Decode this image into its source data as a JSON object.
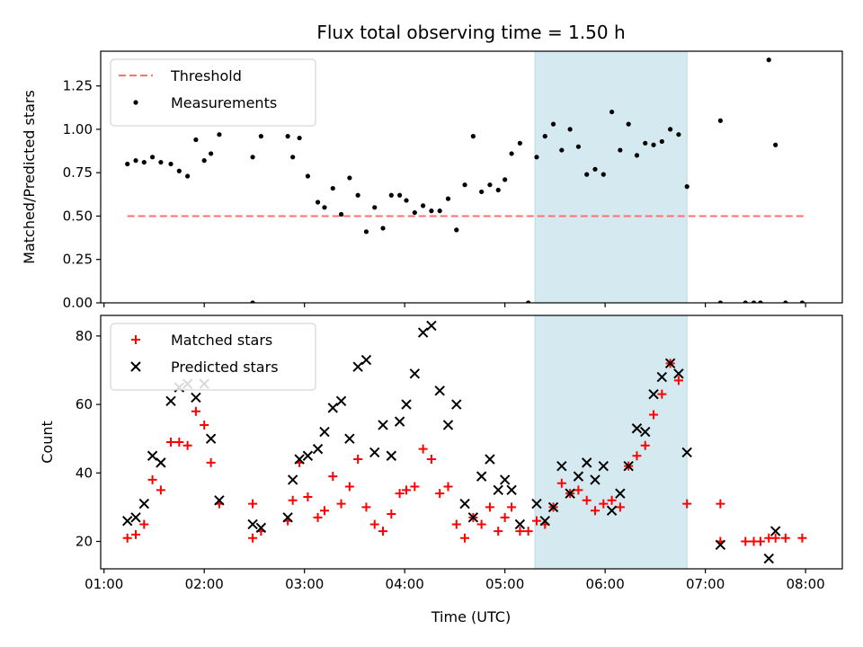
{
  "chart_data": [
    {
      "type": "scatter",
      "title": "Flux total observing time = 1.50 h",
      "xlabel": "",
      "ylabel": "Matched/Predicted stars",
      "ylim": [
        0,
        1.45
      ],
      "xlim": [
        "00:58",
        "08:22"
      ],
      "yticks": [
        "0.00",
        "0.25",
        "0.50",
        "0.75",
        "1.00",
        "1.25"
      ],
      "xticks": [
        "01:00",
        "02:00",
        "03:00",
        "04:00",
        "05:00",
        "06:00",
        "07:00",
        "08:00"
      ],
      "shaded_region": {
        "from": "05:18",
        "to": "06:49",
        "color": "#d4eaf0"
      },
      "legend_position": "upper left",
      "threshold": {
        "name": "Threshold",
        "value": 0.5,
        "from": "01:14",
        "to": "08:00",
        "color": "#ff7070",
        "style": "dashed"
      },
      "series": [
        {
          "name": "Measurements",
          "color": "#000000",
          "marker": "dot",
          "points": [
            [
              "01:14",
              0.8
            ],
            [
              "01:19",
              0.82
            ],
            [
              "01:24",
              0.81
            ],
            [
              "01:29",
              0.84
            ],
            [
              "01:34",
              0.81
            ],
            [
              "01:40",
              0.8
            ],
            [
              "01:45",
              0.76
            ],
            [
              "01:50",
              0.73
            ],
            [
              "01:55",
              0.94
            ],
            [
              "02:00",
              0.82
            ],
            [
              "02:04",
              0.86
            ],
            [
              "02:09",
              0.97
            ],
            [
              "02:29",
              0.0
            ],
            [
              "02:29",
              0.84
            ],
            [
              "02:34",
              0.96
            ],
            [
              "02:50",
              0.96
            ],
            [
              "02:53",
              0.84
            ],
            [
              "02:57",
              0.95
            ],
            [
              "03:02",
              0.73
            ],
            [
              "03:08",
              0.58
            ],
            [
              "03:12",
              0.55
            ],
            [
              "03:17",
              0.66
            ],
            [
              "03:22",
              0.51
            ],
            [
              "03:27",
              0.72
            ],
            [
              "03:32",
              0.62
            ],
            [
              "03:37",
              0.41
            ],
            [
              "03:42",
              0.55
            ],
            [
              "03:47",
              0.43
            ],
            [
              "03:52",
              0.62
            ],
            [
              "03:57",
              0.62
            ],
            [
              "04:01",
              0.59
            ],
            [
              "04:06",
              0.52
            ],
            [
              "04:11",
              0.56
            ],
            [
              "04:16",
              0.53
            ],
            [
              "04:21",
              0.53
            ],
            [
              "04:26",
              0.6
            ],
            [
              "04:31",
              0.42
            ],
            [
              "04:36",
              0.68
            ],
            [
              "04:41",
              0.96
            ],
            [
              "04:46",
              0.64
            ],
            [
              "04:51",
              0.68
            ],
            [
              "04:56",
              0.65
            ],
            [
              "05:00",
              0.71
            ],
            [
              "05:04",
              0.86
            ],
            [
              "05:09",
              0.92
            ],
            [
              "05:14",
              0.0
            ],
            [
              "05:19",
              0.84
            ],
            [
              "05:24",
              0.96
            ],
            [
              "05:29",
              1.03
            ],
            [
              "05:34",
              0.88
            ],
            [
              "05:39",
              1.0
            ],
            [
              "05:44",
              0.9
            ],
            [
              "05:49",
              0.74
            ],
            [
              "05:54",
              0.77
            ],
            [
              "05:59",
              0.74
            ],
            [
              "06:04",
              1.1
            ],
            [
              "06:09",
              0.88
            ],
            [
              "06:14",
              1.03
            ],
            [
              "06:19",
              0.85
            ],
            [
              "06:24",
              0.92
            ],
            [
              "06:29",
              0.91
            ],
            [
              "06:34",
              0.93
            ],
            [
              "06:39",
              1.0
            ],
            [
              "06:44",
              0.97
            ],
            [
              "06:49",
              0.67
            ],
            [
              "07:09",
              0.0
            ],
            [
              "07:09",
              1.05
            ],
            [
              "07:24",
              0.0
            ],
            [
              "07:29",
              0.0
            ],
            [
              "07:33",
              0.0
            ],
            [
              "07:38",
              1.4
            ],
            [
              "07:42",
              0.91
            ],
            [
              "07:48",
              0.0
            ],
            [
              "07:58",
              0.0
            ]
          ]
        }
      ]
    },
    {
      "type": "scatter",
      "title": "",
      "xlabel": "Time (UTC)",
      "ylabel": "Count",
      "ylim": [
        12,
        86
      ],
      "xlim": [
        "00:58",
        "08:22"
      ],
      "yticks": [
        "20",
        "40",
        "60",
        "80"
      ],
      "xticks": [
        "01:00",
        "02:00",
        "03:00",
        "04:00",
        "05:00",
        "06:00",
        "07:00",
        "08:00"
      ],
      "shaded_region": {
        "from": "05:18",
        "to": "06:49",
        "color": "#d4eaf0"
      },
      "legend_position": "upper left",
      "series": [
        {
          "name": "Matched stars",
          "color": "#ff0000",
          "marker": "plus",
          "points": [
            [
              "01:14",
              21
            ],
            [
              "01:19",
              22
            ],
            [
              "01:24",
              25
            ],
            [
              "01:29",
              38
            ],
            [
              "01:34",
              35
            ],
            [
              "01:40",
              49
            ],
            [
              "01:45",
              49
            ],
            [
              "01:50",
              48
            ],
            [
              "01:55",
              58
            ],
            [
              "02:00",
              54
            ],
            [
              "02:04",
              43
            ],
            [
              "02:09",
              31
            ],
            [
              "02:29",
              31
            ],
            [
              "02:29",
              21
            ],
            [
              "02:34",
              23
            ],
            [
              "02:50",
              26
            ],
            [
              "02:53",
              32
            ],
            [
              "02:57",
              43
            ],
            [
              "03:02",
              33
            ],
            [
              "03:08",
              27
            ],
            [
              "03:12",
              29
            ],
            [
              "03:17",
              39
            ],
            [
              "03:22",
              31
            ],
            [
              "03:27",
              36
            ],
            [
              "03:32",
              44
            ],
            [
              "03:37",
              30
            ],
            [
              "03:42",
              25
            ],
            [
              "03:47",
              23
            ],
            [
              "03:52",
              28
            ],
            [
              "03:57",
              34
            ],
            [
              "04:01",
              35
            ],
            [
              "04:06",
              36
            ],
            [
              "04:11",
              47
            ],
            [
              "04:16",
              44
            ],
            [
              "04:21",
              34
            ],
            [
              "04:26",
              36
            ],
            [
              "04:31",
              25
            ],
            [
              "04:36",
              21
            ],
            [
              "04:41",
              27
            ],
            [
              "04:46",
              25
            ],
            [
              "04:51",
              30
            ],
            [
              "04:56",
              23
            ],
            [
              "05:00",
              27
            ],
            [
              "05:04",
              30
            ],
            [
              "05:09",
              23
            ],
            [
              "05:14",
              23
            ],
            [
              "05:19",
              26
            ],
            [
              "05:24",
              25
            ],
            [
              "05:29",
              30
            ],
            [
              "05:34",
              37
            ],
            [
              "05:39",
              34
            ],
            [
              "05:44",
              35
            ],
            [
              "05:49",
              32
            ],
            [
              "05:54",
              29
            ],
            [
              "05:59",
              31
            ],
            [
              "06:04",
              32
            ],
            [
              "06:09",
              30
            ],
            [
              "06:14",
              42
            ],
            [
              "06:19",
              45
            ],
            [
              "06:24",
              48
            ],
            [
              "06:29",
              57
            ],
            [
              "06:34",
              63
            ],
            [
              "06:39",
              72
            ],
            [
              "06:44",
              67
            ],
            [
              "06:49",
              31
            ],
            [
              "07:09",
              31
            ],
            [
              "07:09",
              20
            ],
            [
              "07:24",
              20
            ],
            [
              "07:29",
              20
            ],
            [
              "07:33",
              20
            ],
            [
              "07:38",
              21
            ],
            [
              "07:42",
              21
            ],
            [
              "07:48",
              21
            ],
            [
              "07:58",
              21
            ]
          ]
        },
        {
          "name": "Predicted stars",
          "color": "#000000",
          "marker": "x",
          "points": [
            [
              "01:14",
              26
            ],
            [
              "01:19",
              27
            ],
            [
              "01:24",
              31
            ],
            [
              "01:29",
              45
            ],
            [
              "01:34",
              43
            ],
            [
              "01:40",
              61
            ],
            [
              "01:45",
              65
            ],
            [
              "01:50",
              66
            ],
            [
              "01:55",
              62
            ],
            [
              "02:00",
              66
            ],
            [
              "02:04",
              50
            ],
            [
              "02:09",
              32
            ],
            [
              "02:29",
              25
            ],
            [
              "02:34",
              24
            ],
            [
              "02:50",
              27
            ],
            [
              "02:53",
              38
            ],
            [
              "02:57",
              44
            ],
            [
              "03:02",
              45
            ],
            [
              "03:08",
              47
            ],
            [
              "03:12",
              52
            ],
            [
              "03:17",
              59
            ],
            [
              "03:22",
              61
            ],
            [
              "03:27",
              50
            ],
            [
              "03:32",
              71
            ],
            [
              "03:37",
              73
            ],
            [
              "03:42",
              46
            ],
            [
              "03:47",
              54
            ],
            [
              "03:52",
              45
            ],
            [
              "03:57",
              55
            ],
            [
              "04:01",
              60
            ],
            [
              "04:06",
              69
            ],
            [
              "04:11",
              81
            ],
            [
              "04:16",
              83
            ],
            [
              "04:21",
              64
            ],
            [
              "04:26",
              54
            ],
            [
              "04:31",
              60
            ],
            [
              "04:36",
              31
            ],
            [
              "04:41",
              27
            ],
            [
              "04:46",
              39
            ],
            [
              "04:51",
              44
            ],
            [
              "04:56",
              35
            ],
            [
              "05:00",
              38
            ],
            [
              "05:04",
              35
            ],
            [
              "05:09",
              25
            ],
            [
              "05:19",
              31
            ],
            [
              "05:24",
              26
            ],
            [
              "05:29",
              30
            ],
            [
              "05:34",
              42
            ],
            [
              "05:39",
              34
            ],
            [
              "05:44",
              39
            ],
            [
              "05:49",
              43
            ],
            [
              "05:54",
              38
            ],
            [
              "05:59",
              42
            ],
            [
              "06:04",
              29
            ],
            [
              "06:09",
              34
            ],
            [
              "06:14",
              42
            ],
            [
              "06:19",
              53
            ],
            [
              "06:24",
              52
            ],
            [
              "06:29",
              63
            ],
            [
              "06:34",
              68
            ],
            [
              "06:39",
              72
            ],
            [
              "06:44",
              69
            ],
            [
              "06:49",
              46
            ],
            [
              "07:09",
              19
            ],
            [
              "07:38",
              15
            ],
            [
              "07:42",
              23
            ]
          ]
        }
      ]
    }
  ]
}
